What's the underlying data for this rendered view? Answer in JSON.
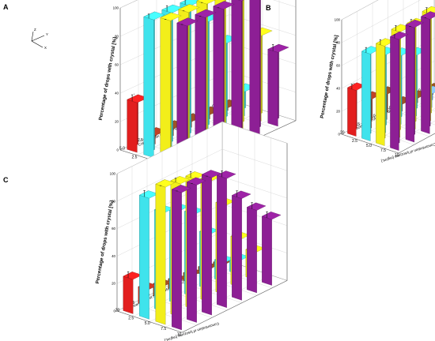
{
  "colors": {
    "cyan": "#3fe3ec",
    "yellow": "#f2ee1a",
    "purple": "#8d1f95",
    "red": "#e21e1e",
    "brown": "#8c4b22",
    "blue": "#7fb6f2"
  },
  "chart_data": [
    {
      "panel": "A",
      "type": "bar3d",
      "ylabel": "Percentage of drops with crystal [%]",
      "x_axis_label": "Concentration of Lyso [mg/mL]",
      "z_axis_label": "Concentration of lysozyme [mg/mL]",
      "x_ticks": [
        "5.0",
        "2.5",
        "1.0",
        "0.5",
        "0.1",
        "0"
      ],
      "z_ticks": [
        "2.5",
        "5.0",
        "7.5",
        "10"
      ],
      "y_ticks": [
        "0",
        "20",
        "40",
        "60",
        "80",
        "100"
      ],
      "ylim": [
        0,
        100
      ],
      "axis_key": [
        "Z",
        "Y",
        "X"
      ],
      "series": [
        {
          "name": "2.5",
          "color_key": "red_brown",
          "values": [
            35,
            6,
            5,
            4,
            3,
            2
          ],
          "labels": [
            "*",
            "",
            "",
            "",
            "",
            ""
          ]
        },
        {
          "name": "5.0",
          "color_key": "cyan",
          "values": [
            97,
            96,
            95,
            78,
            57,
            17
          ],
          "labels": [
            "",
            "",
            "",
            "",
            "",
            ""
          ]
        },
        {
          "name": "7.5",
          "color_key": "yellow",
          "values": [
            100,
            100,
            100,
            99,
            96,
            60
          ],
          "labels": [
            "",
            "",
            "",
            "",
            "",
            ""
          ]
        },
        {
          "name": "10",
          "color_key": "purple",
          "values": [
            100,
            100,
            100,
            100,
            99,
            52
          ],
          "labels": [
            "",
            "",
            "",
            "",
            "",
            ""
          ]
        }
      ]
    },
    {
      "panel": "B",
      "type": "bar3d",
      "ylabel": "Percentage of drops with crystal [%]",
      "x_axis_label": "Concentration of PEG [mg/mL]",
      "z_axis_label": "Concentration of lysozyme [mg/mL]",
      "x_ticks": [
        "20",
        "15",
        "10",
        "5.0",
        "2.5",
        "0"
      ],
      "z_ticks": [
        "2.5",
        "5.0",
        "7.5",
        "10"
      ],
      "y_ticks": [
        "0",
        "20",
        "40",
        "60",
        "80",
        "100"
      ],
      "ylim": [
        0,
        100
      ],
      "series": [
        {
          "name": "2.5",
          "color_key": "red_brown",
          "values": [
            40,
            25,
            22,
            6,
            4,
            3
          ],
          "labels": [
            "*",
            "",
            "",
            "",
            "",
            ""
          ]
        },
        {
          "name": "5.0",
          "color_key": "cyan",
          "values": [
            76,
            68,
            60,
            53,
            12,
            8
          ],
          "labels": [
            "",
            "",
            "",
            "",
            "",
            ""
          ]
        },
        {
          "name": "7.5",
          "color_key": "yellow",
          "values": [
            87,
            92,
            90,
            93,
            65,
            45
          ],
          "labels": [
            "",
            "",
            "",
            "",
            "",
            ""
          ]
        },
        {
          "name": "10",
          "color_key": "purple",
          "values": [
            97,
            100,
            100,
            98,
            65,
            30
          ],
          "labels": [
            "",
            "",
            "",
            "",
            "",
            ""
          ]
        }
      ]
    },
    {
      "panel": "C",
      "type": "bar3d",
      "ylabel": "Percentage of drops with crystal [%]",
      "x_axis_label": "Concentration of herring DNA [mg/mL]",
      "z_axis_label": "Concentration of lysozyme [mg/mL]",
      "x_ticks": [
        "20",
        "15",
        "10",
        "5.0",
        "2.5",
        "1.0",
        "0"
      ],
      "z_ticks": [
        "2.5",
        "5.0",
        "7.5",
        "10"
      ],
      "y_ticks": [
        "0",
        "20",
        "40",
        "60",
        "80",
        "100"
      ],
      "ylim": [
        0,
        100
      ],
      "series": [
        {
          "name": "2.5",
          "color_key": "red_brown",
          "values": [
            25,
            12,
            9,
            7,
            6,
            5,
            3
          ],
          "labels": [
            "",
            "",
            "",
            "",
            "",
            "",
            ""
          ]
        },
        {
          "name": "5.0",
          "color_key": "cyan",
          "values": [
            88,
            72,
            68,
            60,
            40,
            14,
            10
          ],
          "labels": [
            "",
            "",
            "",
            "",
            "",
            "",
            ""
          ]
        },
        {
          "name": "7.5",
          "color_key": "yellow",
          "values": [
            100,
            97,
            95,
            88,
            65,
            35,
            20
          ],
          "labels": [
            "",
            "",
            "",
            "",
            "",
            "",
            ""
          ]
        },
        {
          "name": "10",
          "color_key": "purple",
          "values": [
            100,
            100,
            100,
            94,
            74,
            60,
            48
          ],
          "labels": [
            "",
            "",
            "",
            "",
            "",
            "",
            ""
          ]
        }
      ]
    }
  ]
}
